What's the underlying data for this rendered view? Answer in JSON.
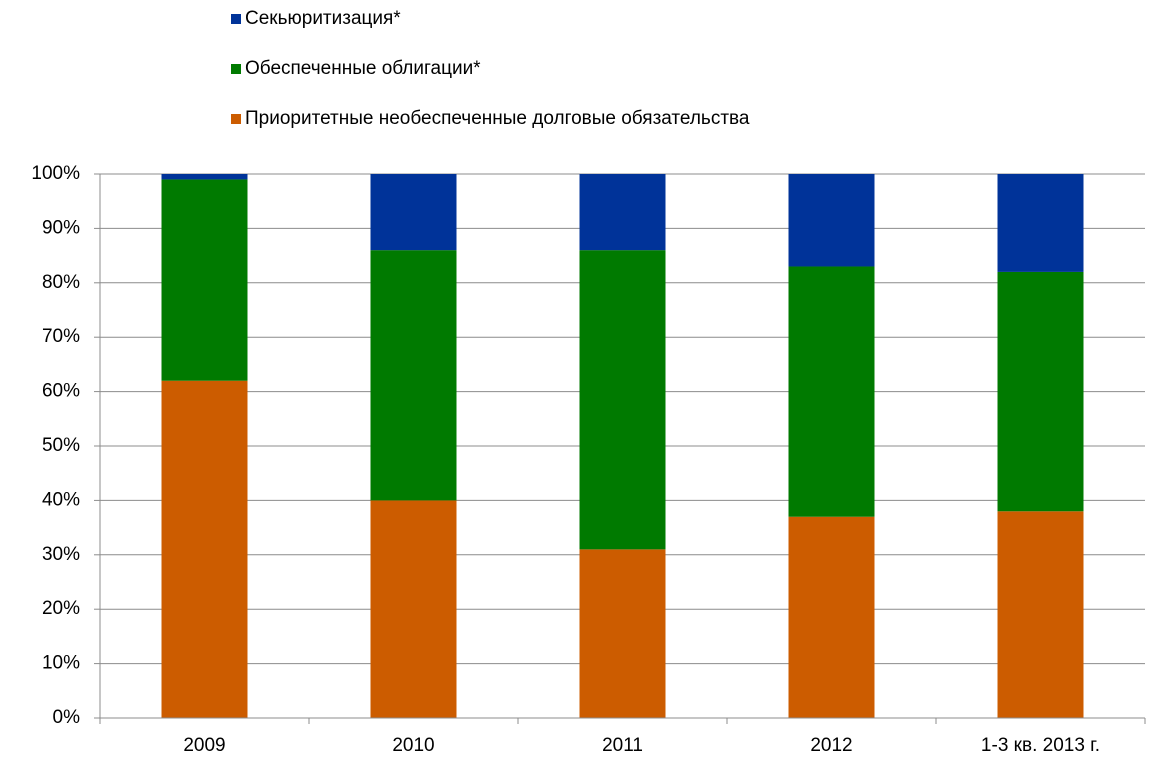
{
  "chart_data": {
    "type": "stacked_bar",
    "categories": [
      "2009",
      "2010",
      "2011",
      "2012",
      "1-3 кв. 2013 г."
    ],
    "series": [
      {
        "name": "Секьюритизация*",
        "color": "#003399",
        "values": [
          1,
          14,
          14,
          17,
          18
        ]
      },
      {
        "name": "Обеспеченные облигации*",
        "color": "#007a00",
        "values": [
          37,
          46,
          55,
          46,
          44
        ]
      },
      {
        "name": "Приоритетные необеспеченные долговые обязательства",
        "color": "#cc5c00",
        "values": [
          62,
          40,
          31,
          37,
          38
        ]
      }
    ],
    "ylim": [
      0,
      100
    ],
    "yticks": [
      {
        "value": 0,
        "label": "0%"
      },
      {
        "value": 10,
        "label": "10%"
      },
      {
        "value": 20,
        "label": "20%"
      },
      {
        "value": 30,
        "label": "30%"
      },
      {
        "value": 40,
        "label": "40%"
      },
      {
        "value": 50,
        "label": "50%"
      },
      {
        "value": 60,
        "label": "60%"
      },
      {
        "value": 70,
        "label": "70%"
      },
      {
        "value": 80,
        "label": "80%"
      },
      {
        "value": 90,
        "label": "90%"
      },
      {
        "value": 100,
        "label": "100%"
      }
    ],
    "grid": true,
    "legend": "top"
  }
}
